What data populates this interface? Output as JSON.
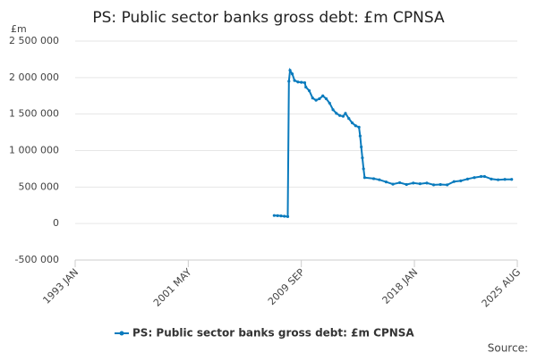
{
  "chart_data": {
    "type": "line",
    "title": "PS: Public sector banks gross debt: £m CPNSA",
    "y_unit": "£m",
    "source": "Source:",
    "x": [
      "2007-09",
      "2007-12",
      "2008-03",
      "2008-06",
      "2008-09",
      "2008-10",
      "2008-11",
      "2009-01",
      "2009-03",
      "2009-06",
      "2009-09",
      "2009-12",
      "2010-01",
      "2010-04",
      "2010-07",
      "2010-10",
      "2011-01",
      "2011-04",
      "2011-07",
      "2011-10",
      "2012-01",
      "2012-04",
      "2012-07",
      "2012-10",
      "2012-12",
      "2013-03",
      "2013-06",
      "2013-09",
      "2013-12",
      "2014-01",
      "2014-02",
      "2014-03",
      "2014-04",
      "2014-05",
      "2015-01",
      "2015-06",
      "2015-12",
      "2016-06",
      "2016-12",
      "2017-06",
      "2017-12",
      "2018-06",
      "2018-12",
      "2019-06",
      "2019-12",
      "2020-06",
      "2020-12",
      "2021-06",
      "2021-12",
      "2022-06",
      "2022-12",
      "2023-03",
      "2023-09",
      "2024-03",
      "2024-09",
      "2025-03"
    ],
    "series": [
      {
        "name": "PS: Public sector banks gross debt: £m CPNSA",
        "color": "#0a7bbd",
        "values": [
          110000,
          108000,
          105000,
          100000,
          95000,
          1950000,
          2100000,
          2050000,
          1960000,
          1940000,
          1935000,
          1930000,
          1870000,
          1820000,
          1720000,
          1690000,
          1710000,
          1750000,
          1710000,
          1650000,
          1560000,
          1510000,
          1480000,
          1470000,
          1510000,
          1440000,
          1380000,
          1340000,
          1320000,
          1200000,
          1050000,
          900000,
          750000,
          630000,
          615000,
          600000,
          570000,
          540000,
          560000,
          535000,
          555000,
          545000,
          555000,
          530000,
          535000,
          530000,
          575000,
          585000,
          610000,
          630000,
          645000,
          645000,
          610000,
          600000,
          605000,
          605000
        ]
      }
    ],
    "xlim": [
      "1993-01",
      "2025-08"
    ],
    "xticks": [
      {
        "value": "1993-01",
        "label": "1993 JAN"
      },
      {
        "value": "2001-05",
        "label": "2001 MAY"
      },
      {
        "value": "2009-09",
        "label": "2009 SEP"
      },
      {
        "value": "2018-01",
        "label": "2018 JAN"
      },
      {
        "value": "2025-08",
        "label": "2025 AUG"
      }
    ],
    "ylim": [
      -500000,
      2500000
    ],
    "yticks": [
      {
        "value": -500000,
        "label": "-500 000"
      },
      0,
      {
        "value": 500000,
        "label": "500 000"
      },
      {
        "value": 1000000,
        "label": "1 000 000"
      },
      {
        "value": 1500000,
        "label": "1 500 000"
      },
      {
        "value": 2000000,
        "label": "2 000 000"
      },
      {
        "value": 2500000,
        "label": "2 500 000"
      }
    ],
    "grid": true,
    "legend": "bottom"
  }
}
